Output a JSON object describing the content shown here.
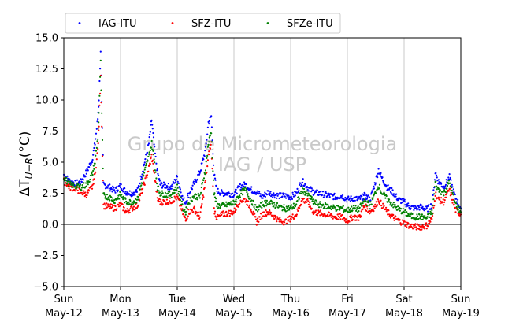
{
  "chart_data": {
    "type": "scatter",
    "title": "",
    "ylabel": "ΔT",
    "ylabel_subscript": "U−R",
    "ylabel_unit": "(°C)",
    "ylim": [
      -5.0,
      15.0
    ],
    "yticks": [
      "−5.0",
      "−2.5",
      "0.0",
      "2.5",
      "5.0",
      "7.5",
      "10.0",
      "12.5",
      "15.0"
    ],
    "ytick_values": [
      -5.0,
      -2.5,
      0.0,
      2.5,
      5.0,
      7.5,
      10.0,
      12.5,
      15.0
    ],
    "xlim_days": [
      0,
      7
    ],
    "xticks": [
      {
        "day": "Sun",
        "date": "May-12"
      },
      {
        "day": "Mon",
        "date": "May-13"
      },
      {
        "day": "Tue",
        "date": "May-14"
      },
      {
        "day": "Wed",
        "date": "May-15"
      },
      {
        "day": "Thu",
        "date": "May-16"
      },
      {
        "day": "Fri",
        "date": "May-17"
      },
      {
        "day": "Sat",
        "date": "May-18"
      },
      {
        "day": "Sun",
        "date": "May-19"
      }
    ],
    "grid": "vertical",
    "zero_line": true,
    "legend_position": "top",
    "watermark": [
      "Grupo de Micrometeorologia",
      "IAG / USP"
    ],
    "series": [
      {
        "name": "IAG-ITU",
        "color": "#0000ff",
        "x": [
          0.0,
          0.1,
          0.2,
          0.3,
          0.4,
          0.5,
          0.55,
          0.6,
          0.62,
          0.65,
          0.7,
          0.8,
          0.9,
          1.0,
          1.1,
          1.2,
          1.3,
          1.4,
          1.5,
          1.55,
          1.6,
          1.65,
          1.7,
          1.8,
          1.9,
          2.0,
          2.1,
          2.15,
          2.2,
          2.3,
          2.4,
          2.5,
          2.55,
          2.6,
          2.65,
          2.7,
          2.8,
          2.9,
          3.0,
          3.1,
          3.2,
          3.3,
          3.4,
          3.5,
          3.6,
          3.7,
          3.8,
          3.9,
          4.0,
          4.1,
          4.2,
          4.3,
          4.4,
          4.5,
          4.6,
          4.7,
          4.8,
          4.9,
          5.0,
          5.1,
          5.2,
          5.3,
          5.4,
          5.5,
          5.55,
          5.6,
          5.7,
          5.8,
          5.9,
          6.0,
          6.1,
          6.2,
          6.3,
          6.4,
          6.5,
          6.55,
          6.6,
          6.7,
          6.8,
          6.9,
          7.0
        ],
        "y": [
          4.0,
          3.5,
          3.3,
          3.4,
          4.2,
          5.2,
          6.5,
          8.5,
          10.1,
          14.0,
          3.2,
          3.0,
          2.7,
          3.1,
          2.6,
          2.5,
          2.7,
          4.5,
          6.5,
          8.4,
          6.0,
          4.2,
          3.2,
          3.1,
          3.0,
          3.8,
          2.0,
          1.8,
          2.4,
          3.3,
          4.2,
          6.0,
          8.2,
          8.7,
          4.0,
          2.7,
          2.5,
          2.5,
          2.4,
          3.0,
          3.2,
          2.8,
          2.6,
          2.2,
          2.6,
          2.4,
          2.3,
          2.3,
          2.2,
          2.5,
          3.5,
          3.0,
          2.6,
          2.5,
          2.4,
          2.3,
          2.2,
          2.3,
          2.0,
          2.1,
          2.0,
          2.3,
          2.0,
          3.5,
          4.4,
          3.8,
          3.0,
          2.6,
          2.0,
          1.8,
          1.4,
          1.3,
          1.4,
          1.2,
          1.6,
          4.2,
          3.5,
          3.0,
          3.8,
          2.2,
          1.3
        ]
      },
      {
        "name": "SFZ-ITU",
        "color": "#ff0000",
        "x": [
          0.0,
          0.1,
          0.2,
          0.3,
          0.4,
          0.5,
          0.55,
          0.6,
          0.62,
          0.65,
          0.7,
          0.8,
          0.9,
          1.0,
          1.1,
          1.2,
          1.3,
          1.4,
          1.5,
          1.55,
          1.6,
          1.65,
          1.7,
          1.8,
          1.9,
          2.0,
          2.1,
          2.15,
          2.2,
          2.3,
          2.4,
          2.5,
          2.55,
          2.6,
          2.65,
          2.7,
          2.8,
          2.9,
          3.0,
          3.1,
          3.2,
          3.3,
          3.4,
          3.5,
          3.6,
          3.7,
          3.8,
          3.9,
          4.0,
          4.1,
          4.2,
          4.3,
          4.4,
          4.5,
          4.6,
          4.7,
          4.8,
          4.9,
          5.0,
          5.1,
          5.2,
          5.3,
          5.4,
          5.5,
          5.55,
          5.6,
          5.7,
          5.8,
          5.9,
          6.0,
          6.1,
          6.2,
          6.3,
          6.4,
          6.5,
          6.55,
          6.6,
          6.7,
          6.8,
          6.9,
          7.0
        ],
        "y": [
          3.5,
          3.0,
          2.9,
          2.6,
          2.4,
          3.0,
          4.0,
          6.0,
          8.0,
          12.1,
          1.5,
          1.4,
          1.3,
          1.6,
          1.0,
          1.3,
          1.5,
          3.0,
          4.5,
          5.5,
          4.0,
          2.0,
          1.8,
          1.8,
          1.9,
          2.2,
          0.9,
          0.3,
          1.0,
          1.2,
          0.6,
          3.5,
          5.5,
          6.5,
          1.2,
          0.5,
          0.8,
          0.9,
          1.0,
          1.9,
          2.0,
          1.3,
          0.2,
          0.8,
          1.0,
          0.7,
          0.3,
          0.2,
          0.5,
          0.8,
          2.0,
          1.8,
          1.0,
          0.9,
          0.8,
          0.7,
          0.6,
          0.6,
          0.3,
          0.6,
          0.5,
          1.5,
          1.0,
          1.5,
          2.0,
          1.6,
          1.0,
          0.6,
          0.3,
          0.1,
          -0.1,
          -0.2,
          -0.2,
          -0.1,
          0.5,
          2.5,
          2.0,
          1.8,
          2.8,
          1.2,
          0.8
        ]
      },
      {
        "name": "SFZe-ITU",
        "color": "#008000",
        "x": [
          0.0,
          0.1,
          0.2,
          0.3,
          0.4,
          0.5,
          0.55,
          0.6,
          0.62,
          0.65,
          0.7,
          0.8,
          0.9,
          1.0,
          1.1,
          1.2,
          1.3,
          1.4,
          1.5,
          1.55,
          1.6,
          1.65,
          1.7,
          1.8,
          1.9,
          2.0,
          2.1,
          2.15,
          2.2,
          2.3,
          2.4,
          2.5,
          2.55,
          2.6,
          2.65,
          2.7,
          2.8,
          2.9,
          3.0,
          3.1,
          3.2,
          3.3,
          3.4,
          3.5,
          3.6,
          3.7,
          3.8,
          3.9,
          4.0,
          4.1,
          4.2,
          4.3,
          4.4,
          4.5,
          4.6,
          4.7,
          4.8,
          4.9,
          5.0,
          5.1,
          5.2,
          5.3,
          5.4,
          5.5,
          5.55,
          5.6,
          5.7,
          5.8,
          5.9,
          6.0,
          6.1,
          6.2,
          6.3,
          6.4,
          6.5,
          6.55,
          6.6,
          6.7,
          6.8,
          6.9,
          7.0
        ],
        "y": [
          3.8,
          3.2,
          3.1,
          3.0,
          3.2,
          4.0,
          5.0,
          7.0,
          9.0,
          13.0,
          2.3,
          2.2,
          1.9,
          2.4,
          1.8,
          1.8,
          2.0,
          3.8,
          5.5,
          6.5,
          5.0,
          3.0,
          2.5,
          2.4,
          2.4,
          3.0,
          1.3,
          1.0,
          1.8,
          2.3,
          2.2,
          4.5,
          6.5,
          7.5,
          2.5,
          1.5,
          1.5,
          1.6,
          1.7,
          2.4,
          2.8,
          2.0,
          1.2,
          1.6,
          1.8,
          1.6,
          1.4,
          1.3,
          1.3,
          1.6,
          2.8,
          2.4,
          1.8,
          1.6,
          1.5,
          1.4,
          1.3,
          1.3,
          1.1,
          1.3,
          1.2,
          1.9,
          1.5,
          2.6,
          3.2,
          2.6,
          2.0,
          1.6,
          1.2,
          1.0,
          0.7,
          0.6,
          0.6,
          0.5,
          1.0,
          3.4,
          2.8,
          2.5,
          3.4,
          1.7,
          1.0
        ]
      }
    ]
  }
}
